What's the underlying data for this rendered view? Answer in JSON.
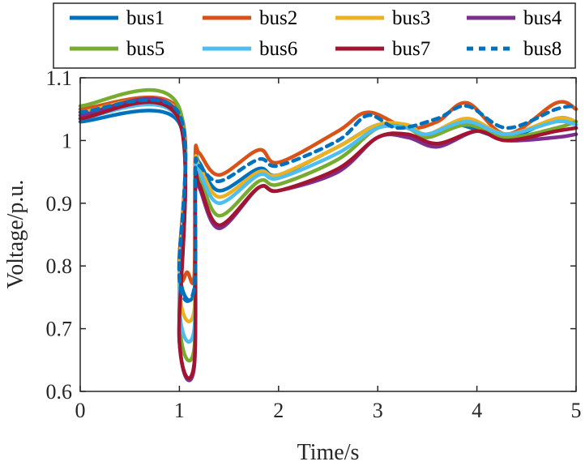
{
  "chart_data": {
    "type": "line",
    "title": "",
    "xlabel": "Time/s",
    "ylabel": "Voltage/p.u.",
    "xlim": [
      0,
      5
    ],
    "ylim": [
      0.6,
      1.1
    ],
    "xticks": [
      0,
      1,
      2,
      3,
      4,
      5
    ],
    "xtick_labels": [
      "0",
      "1",
      "2",
      "3",
      "4",
      "5"
    ],
    "yticks": [
      0.6,
      0.7,
      0.8,
      0.9,
      1.0,
      1.1
    ],
    "ytick_labels": [
      "0.6",
      "0.7",
      "0.8",
      "0.9",
      "1",
      "1.1"
    ],
    "grid": false,
    "legend_position": "top",
    "series": [
      {
        "name": "bus1",
        "color": "#0072BD",
        "dash": "solid",
        "values": [
          [
            0,
            1.03
          ],
          [
            0.99,
            1.03
          ],
          [
            1.0,
            0.79
          ],
          [
            1.15,
            0.76
          ],
          [
            1.16,
            0.96
          ],
          [
            1.2,
            0.965
          ],
          [
            1.4,
            0.92
          ],
          [
            1.8,
            0.955
          ],
          [
            2.0,
            0.945
          ],
          [
            2.6,
            0.99
          ],
          [
            3.0,
            1.025
          ],
          [
            3.3,
            1.02
          ],
          [
            3.5,
            1.005
          ],
          [
            3.8,
            1.025
          ],
          [
            4.3,
            1.005
          ],
          [
            4.8,
            1.035
          ],
          [
            5.0,
            1.03
          ]
        ]
      },
      {
        "name": "bus2",
        "color": "#D95319",
        "dash": "solid",
        "values": [
          [
            0,
            1.05
          ],
          [
            0.99,
            1.05
          ],
          [
            1.0,
            0.795
          ],
          [
            1.08,
            0.79
          ],
          [
            1.15,
            0.785
          ],
          [
            1.16,
            0.975
          ],
          [
            1.2,
            0.98
          ],
          [
            1.4,
            0.945
          ],
          [
            1.8,
            0.985
          ],
          [
            2.0,
            0.965
          ],
          [
            2.6,
            1.015
          ],
          [
            2.9,
            1.045
          ],
          [
            3.3,
            1.02
          ],
          [
            3.6,
            1.03
          ],
          [
            3.9,
            1.06
          ],
          [
            4.3,
            1.01
          ],
          [
            4.8,
            1.06
          ],
          [
            5.0,
            1.05
          ]
        ]
      },
      {
        "name": "bus3",
        "color": "#EDB120",
        "dash": "solid",
        "values": [
          [
            0,
            1.045
          ],
          [
            0.99,
            1.045
          ],
          [
            1.0,
            0.76
          ],
          [
            1.15,
            0.73
          ],
          [
            1.16,
            0.955
          ],
          [
            1.2,
            0.96
          ],
          [
            1.4,
            0.91
          ],
          [
            1.8,
            0.95
          ],
          [
            2.0,
            0.945
          ],
          [
            2.6,
            0.99
          ],
          [
            3.0,
            1.025
          ],
          [
            3.3,
            1.025
          ],
          [
            3.5,
            1.01
          ],
          [
            3.9,
            1.035
          ],
          [
            4.3,
            1.01
          ],
          [
            4.8,
            1.035
          ],
          [
            5.0,
            1.03
          ]
        ]
      },
      {
        "name": "bus4",
        "color": "#7E2F8E",
        "dash": "solid",
        "values": [
          [
            0,
            1.04
          ],
          [
            0.99,
            1.04
          ],
          [
            1.0,
            0.68
          ],
          [
            1.15,
            0.64
          ],
          [
            1.16,
            0.92
          ],
          [
            1.2,
            0.925
          ],
          [
            1.4,
            0.86
          ],
          [
            1.8,
            0.925
          ],
          [
            2.0,
            0.92
          ],
          [
            2.6,
            0.95
          ],
          [
            3.0,
            1.005
          ],
          [
            3.3,
            1.005
          ],
          [
            3.6,
            0.99
          ],
          [
            4.0,
            1.015
          ],
          [
            4.3,
            1.0
          ],
          [
            4.8,
            1.005
          ],
          [
            5.0,
            1.01
          ]
        ]
      },
      {
        "name": "bus5",
        "color": "#77AC30",
        "dash": "solid",
        "values": [
          [
            0,
            1.055
          ],
          [
            0.99,
            1.055
          ],
          [
            1.0,
            0.71
          ],
          [
            1.15,
            0.67
          ],
          [
            1.16,
            0.94
          ],
          [
            1.2,
            0.945
          ],
          [
            1.4,
            0.88
          ],
          [
            1.8,
            0.935
          ],
          [
            2.0,
            0.93
          ],
          [
            2.6,
            0.97
          ],
          [
            3.0,
            1.02
          ],
          [
            3.3,
            1.02
          ],
          [
            3.5,
            1.005
          ],
          [
            3.9,
            1.025
          ],
          [
            4.3,
            1.005
          ],
          [
            4.8,
            1.02
          ],
          [
            5.0,
            1.03
          ]
        ]
      },
      {
        "name": "bus6",
        "color": "#4DBEEE",
        "dash": "solid",
        "values": [
          [
            0,
            1.035
          ],
          [
            0.99,
            1.035
          ],
          [
            1.0,
            0.73
          ],
          [
            1.15,
            0.7
          ],
          [
            1.16,
            0.945
          ],
          [
            1.2,
            0.95
          ],
          [
            1.4,
            0.9
          ],
          [
            1.8,
            0.945
          ],
          [
            2.0,
            0.94
          ],
          [
            2.6,
            0.98
          ],
          [
            3.0,
            1.02
          ],
          [
            3.3,
            1.02
          ],
          [
            3.5,
            1.01
          ],
          [
            3.9,
            1.03
          ],
          [
            4.3,
            1.01
          ],
          [
            4.8,
            1.03
          ],
          [
            5.0,
            1.025
          ]
        ]
      },
      {
        "name": "bus7",
        "color": "#A2142F",
        "dash": "solid",
        "values": [
          [
            0,
            1.035
          ],
          [
            0.99,
            1.035
          ],
          [
            1.0,
            0.68
          ],
          [
            1.15,
            0.645
          ],
          [
            1.16,
            0.925
          ],
          [
            1.2,
            0.93
          ],
          [
            1.4,
            0.865
          ],
          [
            1.8,
            0.925
          ],
          [
            2.0,
            0.92
          ],
          [
            2.6,
            0.955
          ],
          [
            3.0,
            1.005
          ],
          [
            3.3,
            1.01
          ],
          [
            3.6,
            0.995
          ],
          [
            4.0,
            1.015
          ],
          [
            4.3,
            1.0
          ],
          [
            4.8,
            1.015
          ],
          [
            5.0,
            1.02
          ]
        ]
      },
      {
        "name": "bus8",
        "color": "#0072BD",
        "dash": "dashed",
        "values": [
          [
            0,
            1.045
          ],
          [
            0.99,
            1.045
          ],
          [
            1.0,
            0.78
          ],
          [
            1.15,
            0.765
          ],
          [
            1.16,
            0.955
          ],
          [
            1.2,
            0.96
          ],
          [
            1.4,
            0.935
          ],
          [
            1.8,
            0.97
          ],
          [
            2.0,
            0.96
          ],
          [
            2.6,
            1.0
          ],
          [
            2.9,
            1.04
          ],
          [
            3.2,
            1.02
          ],
          [
            3.6,
            1.035
          ],
          [
            3.9,
            1.055
          ],
          [
            4.3,
            1.02
          ],
          [
            4.8,
            1.05
          ],
          [
            5.0,
            1.055
          ]
        ]
      }
    ]
  }
}
